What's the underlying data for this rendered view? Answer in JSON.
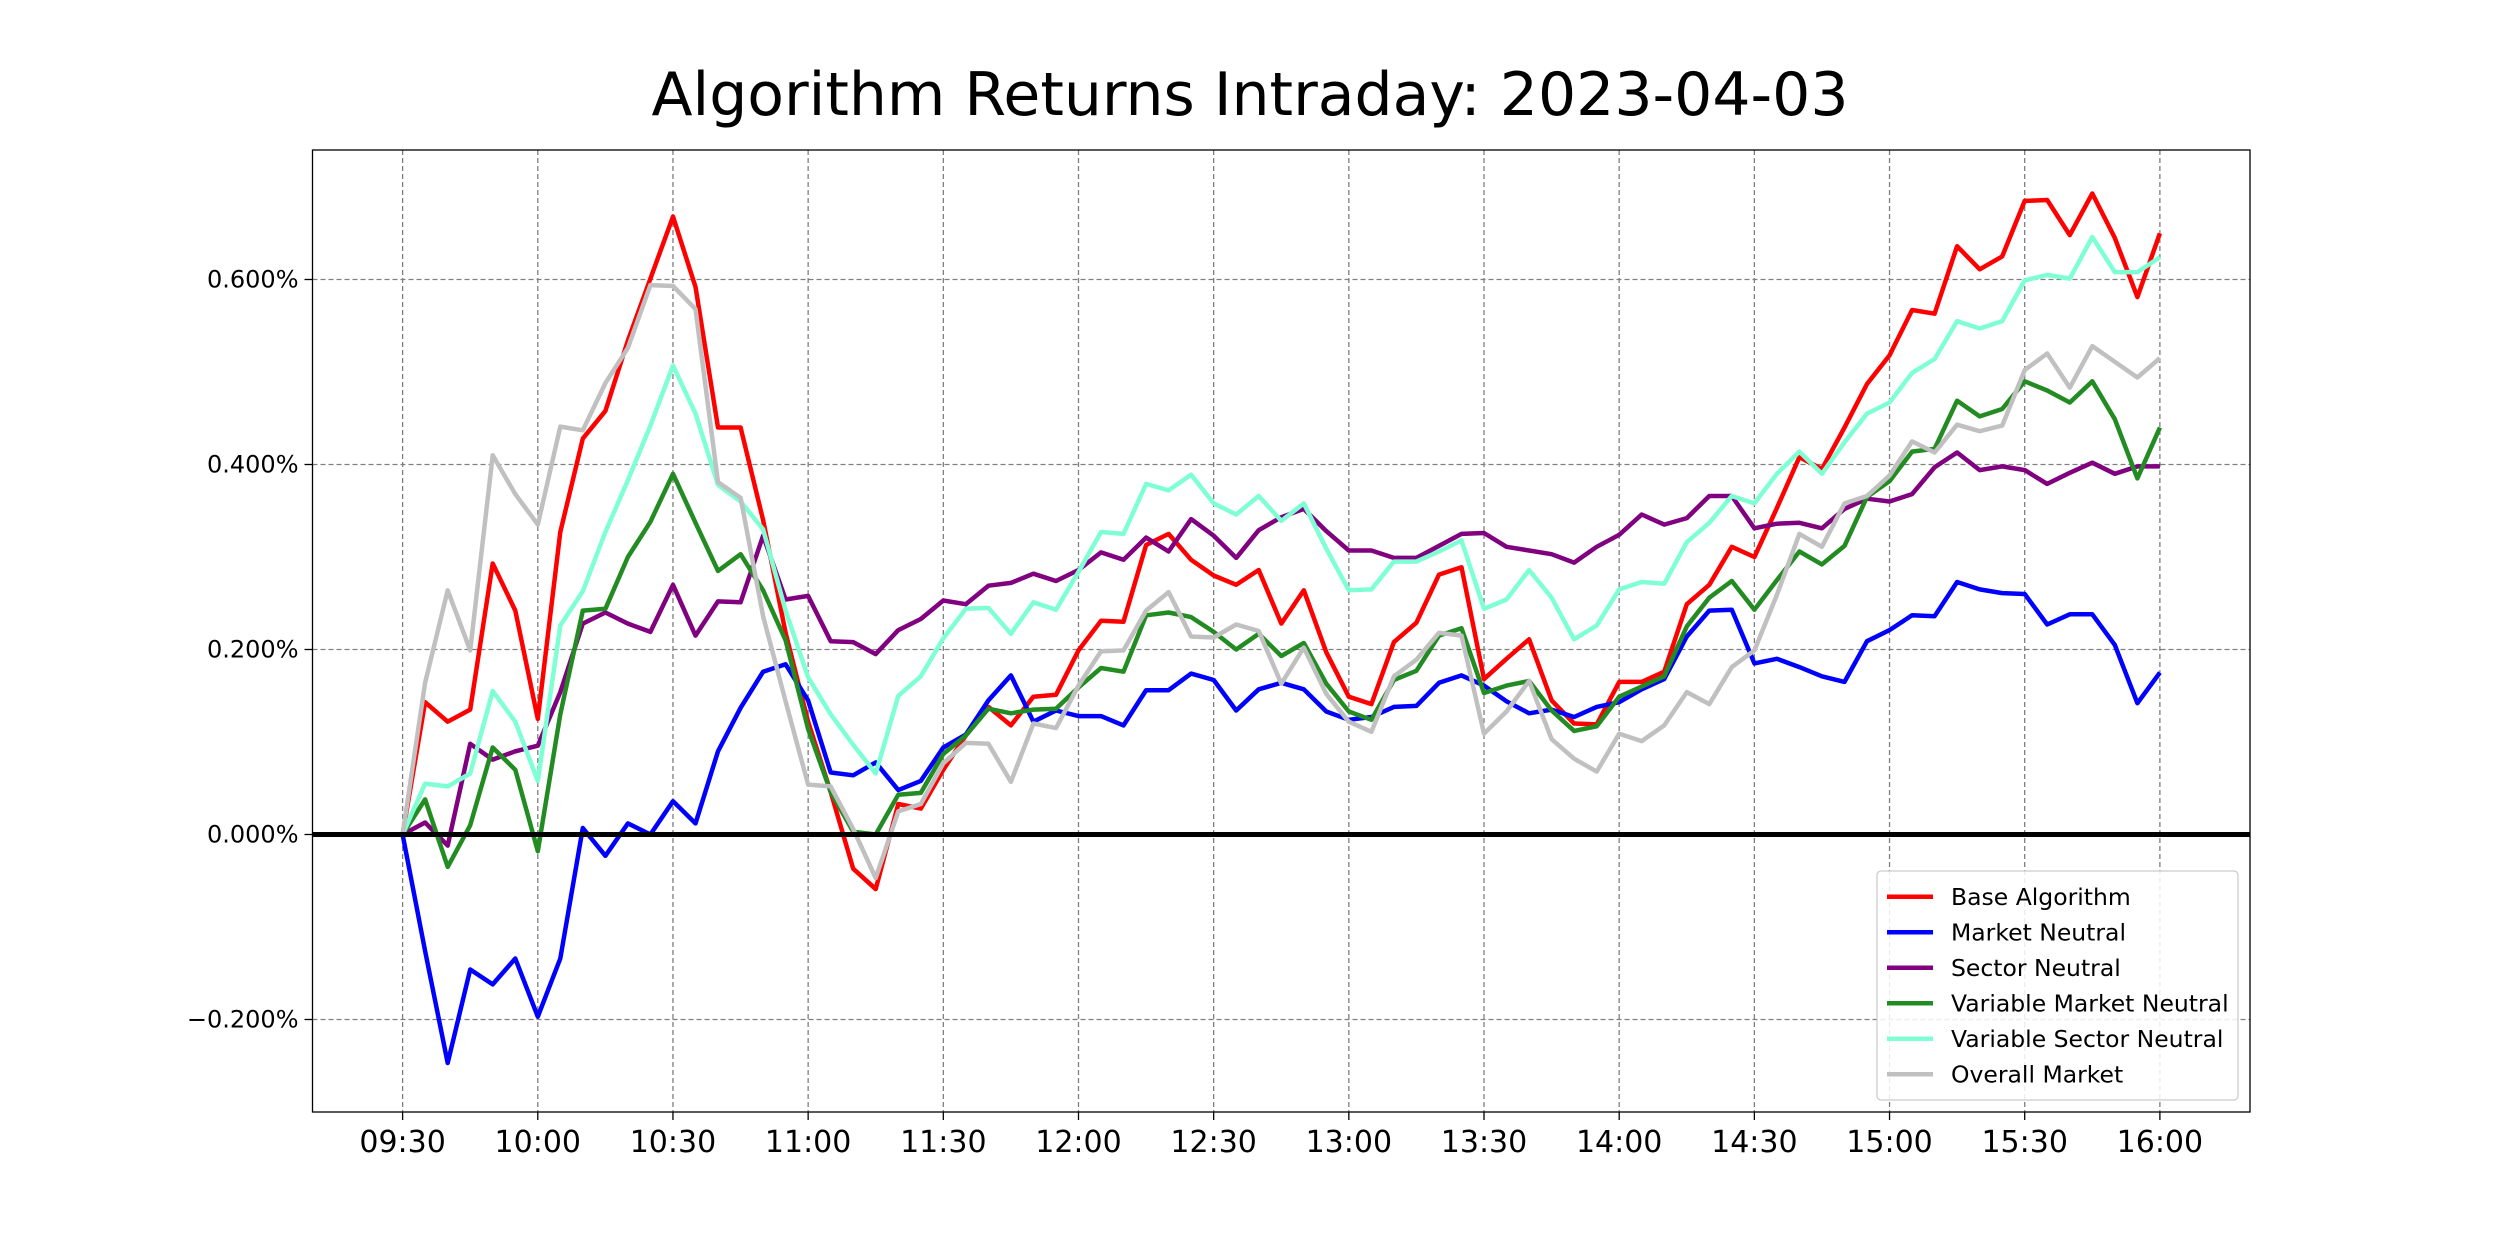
{
  "chart_data": {
    "type": "line",
    "title": "Algorithm Returns Intraday: 2023-04-03",
    "xlabel": "",
    "ylabel": "",
    "x_ticks": [
      "09:30",
      "10:00",
      "10:30",
      "11:00",
      "11:30",
      "12:00",
      "12:30",
      "13:00",
      "13:30",
      "14:00",
      "14:30",
      "15:00",
      "15:30",
      "16:00"
    ],
    "y_ticks": [
      "−0.200%",
      "0.000%",
      "0.200%",
      "0.400%",
      "0.600%"
    ],
    "y_tick_values": [
      -0.2,
      0.0,
      0.2,
      0.4,
      0.6
    ],
    "ylim": [
      -0.3,
      0.74
    ],
    "x_range_minutes_from_0930": [
      -20,
      410
    ],
    "step_minutes": 5,
    "grid": true,
    "zero_line": true,
    "legend_position": "lower right",
    "series": [
      {
        "name": "Base Algorithm",
        "color": "#ff0000",
        "values": [
          0.0,
          0.143,
          0.122,
          0.135,
          0.293,
          0.242,
          0.125,
          0.327,
          0.428,
          0.458,
          0.534,
          0.601,
          0.668,
          0.592,
          0.44,
          0.44,
          0.34,
          0.218,
          0.122,
          0.046,
          -0.037,
          -0.059,
          0.033,
          0.028,
          0.07,
          0.107,
          0.138,
          0.118,
          0.149,
          0.151,
          0.199,
          0.231,
          0.23,
          0.313,
          0.325,
          0.297,
          0.28,
          0.27,
          0.286,
          0.228,
          0.264,
          0.197,
          0.149,
          0.141,
          0.208,
          0.229,
          0.281,
          0.289,
          0.168,
          0.19,
          0.211,
          0.145,
          0.12,
          0.119,
          0.165,
          0.165,
          0.176,
          0.249,
          0.27,
          0.311,
          0.3,
          0.353,
          0.408,
          0.395,
          0.44,
          0.487,
          0.518,
          0.567,
          0.563,
          0.636,
          0.611,
          0.625,
          0.685,
          0.686,
          0.648,
          0.693,
          0.645,
          0.581,
          0.65
        ]
      },
      {
        "name": "Market Neutral",
        "color": "#0000ff",
        "values": [
          0.0,
          -0.126,
          -0.247,
          -0.146,
          -0.162,
          -0.134,
          -0.197,
          -0.134,
          0.007,
          -0.023,
          0.012,
          0.0,
          0.036,
          0.012,
          0.09,
          0.137,
          0.176,
          0.184,
          0.145,
          0.067,
          0.064,
          0.078,
          0.048,
          0.058,
          0.094,
          0.108,
          0.145,
          0.172,
          0.122,
          0.134,
          0.128,
          0.128,
          0.118,
          0.156,
          0.156,
          0.174,
          0.167,
          0.134,
          0.157,
          0.164,
          0.157,
          0.133,
          0.124,
          0.127,
          0.138,
          0.139,
          0.164,
          0.172,
          0.161,
          0.144,
          0.131,
          0.135,
          0.127,
          0.138,
          0.143,
          0.157,
          0.168,
          0.214,
          0.242,
          0.243,
          0.185,
          0.19,
          0.181,
          0.171,
          0.165,
          0.209,
          0.221,
          0.237,
          0.236,
          0.273,
          0.265,
          0.261,
          0.26,
          0.227,
          0.238,
          0.238,
          0.205,
          0.142,
          0.175
        ]
      },
      {
        "name": "Sector Neutral",
        "color": "#800080",
        "values": [
          0.0,
          0.013,
          -0.012,
          0.098,
          0.081,
          0.09,
          0.096,
          0.154,
          0.228,
          0.24,
          0.228,
          0.219,
          0.27,
          0.215,
          0.252,
          0.251,
          0.323,
          0.254,
          0.258,
          0.209,
          0.208,
          0.195,
          0.221,
          0.233,
          0.253,
          0.249,
          0.269,
          0.272,
          0.282,
          0.274,
          0.286,
          0.305,
          0.297,
          0.321,
          0.306,
          0.341,
          0.323,
          0.299,
          0.329,
          0.343,
          0.352,
          0.328,
          0.307,
          0.307,
          0.299,
          0.299,
          0.312,
          0.325,
          0.326,
          0.311,
          0.307,
          0.303,
          0.294,
          0.311,
          0.324,
          0.346,
          0.335,
          0.342,
          0.366,
          0.366,
          0.331,
          0.336,
          0.337,
          0.331,
          0.352,
          0.363,
          0.36,
          0.368,
          0.397,
          0.413,
          0.394,
          0.398,
          0.394,
          0.379,
          0.391,
          0.402,
          0.39,
          0.398,
          0.398
        ]
      },
      {
        "name": "Variable Market Neutral",
        "color": "#228b22",
        "values": [
          0.0,
          0.038,
          -0.035,
          0.01,
          0.094,
          0.07,
          -0.018,
          0.13,
          0.242,
          0.244,
          0.3,
          0.338,
          0.39,
          0.337,
          0.285,
          0.303,
          0.264,
          0.21,
          0.114,
          0.046,
          0.003,
          0.0,
          0.043,
          0.045,
          0.087,
          0.107,
          0.136,
          0.131,
          0.135,
          0.136,
          0.159,
          0.18,
          0.176,
          0.237,
          0.24,
          0.235,
          0.219,
          0.2,
          0.217,
          0.193,
          0.207,
          0.163,
          0.133,
          0.124,
          0.167,
          0.177,
          0.215,
          0.223,
          0.153,
          0.161,
          0.166,
          0.134,
          0.112,
          0.117,
          0.149,
          0.16,
          0.171,
          0.225,
          0.256,
          0.274,
          0.243,
          0.275,
          0.306,
          0.292,
          0.312,
          0.365,
          0.382,
          0.414,
          0.417,
          0.469,
          0.452,
          0.46,
          0.49,
          0.48,
          0.467,
          0.49,
          0.449,
          0.385,
          0.44
        ]
      },
      {
        "name": "Variable Sector Neutral",
        "color": "#7fffd4",
        "values": [
          0.0,
          0.055,
          0.052,
          0.066,
          0.155,
          0.122,
          0.058,
          0.226,
          0.263,
          0.327,
          0.383,
          0.442,
          0.507,
          0.455,
          0.378,
          0.36,
          0.33,
          0.242,
          0.17,
          0.13,
          0.097,
          0.066,
          0.15,
          0.171,
          0.212,
          0.244,
          0.245,
          0.217,
          0.251,
          0.243,
          0.284,
          0.327,
          0.325,
          0.379,
          0.372,
          0.389,
          0.358,
          0.346,
          0.366,
          0.339,
          0.358,
          0.309,
          0.264,
          0.265,
          0.295,
          0.295,
          0.306,
          0.318,
          0.244,
          0.254,
          0.286,
          0.256,
          0.211,
          0.226,
          0.265,
          0.273,
          0.271,
          0.316,
          0.337,
          0.366,
          0.358,
          0.39,
          0.414,
          0.39,
          0.424,
          0.455,
          0.467,
          0.499,
          0.514,
          0.555,
          0.547,
          0.555,
          0.599,
          0.605,
          0.601,
          0.646,
          0.608,
          0.608,
          0.624
        ]
      },
      {
        "name": "Overall Market",
        "color": "#c0c0c0",
        "values": [
          0.0,
          0.164,
          0.264,
          0.199,
          0.41,
          0.368,
          0.335,
          0.441,
          0.437,
          0.488,
          0.526,
          0.594,
          0.593,
          0.568,
          0.381,
          0.364,
          0.236,
          0.144,
          0.054,
          0.052,
          0.006,
          -0.047,
          0.025,
          0.033,
          0.077,
          0.099,
          0.098,
          0.057,
          0.12,
          0.115,
          0.161,
          0.198,
          0.199,
          0.242,
          0.262,
          0.214,
          0.213,
          0.227,
          0.22,
          0.163,
          0.202,
          0.152,
          0.122,
          0.111,
          0.171,
          0.189,
          0.218,
          0.215,
          0.109,
          0.133,
          0.166,
          0.103,
          0.082,
          0.068,
          0.109,
          0.101,
          0.118,
          0.154,
          0.141,
          0.181,
          0.199,
          0.259,
          0.325,
          0.311,
          0.358,
          0.366,
          0.388,
          0.425,
          0.413,
          0.443,
          0.436,
          0.442,
          0.502,
          0.52,
          0.483,
          0.528,
          0.511,
          0.494,
          0.515
        ]
      }
    ]
  }
}
